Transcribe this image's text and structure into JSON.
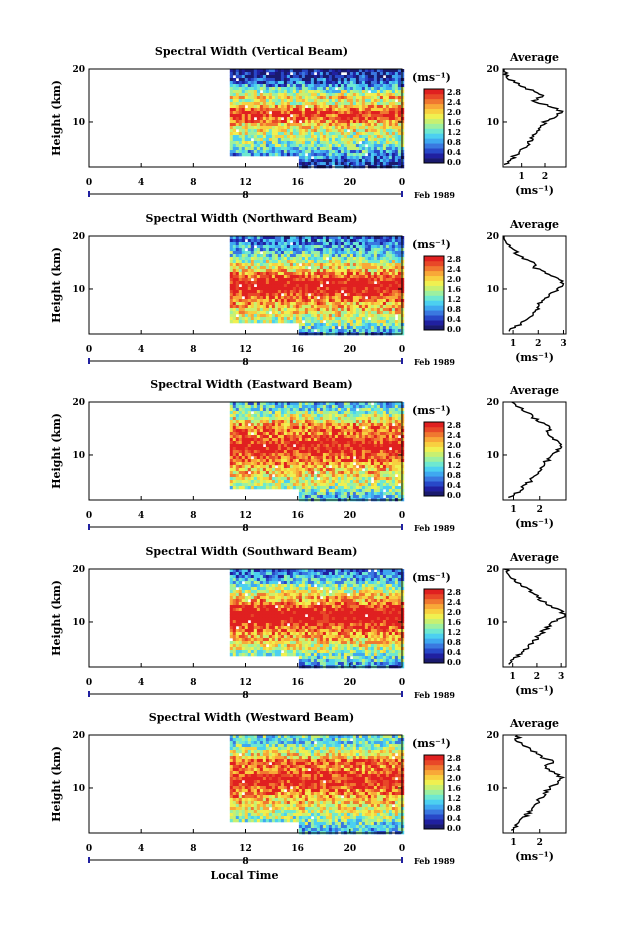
{
  "figure": {
    "xlabel": "Local Time",
    "date_label": "Feb 1989",
    "colorbar_unit": "(ms⁻¹)",
    "colorbar_ticks": [
      "2.8",
      "2.4",
      "2.0",
      "1.6",
      "1.2",
      "0.8",
      "0.4",
      "0.0"
    ],
    "colormap": [
      "#1a1a6e",
      "#2020a0",
      "#2848c8",
      "#3a78e0",
      "#3fa8f0",
      "#4cd0f0",
      "#6ee8d0",
      "#9cf0a0",
      "#c8f070",
      "#f0f050",
      "#f8d040",
      "#f8a838",
      "#f07830",
      "#e84828",
      "#e02020"
    ],
    "time_ticks": [
      "0",
      "4",
      "8",
      "12",
      "16",
      "20",
      "0"
    ],
    "day_label": "8",
    "height_ticks": [
      "20",
      "10"
    ],
    "height_axis_label": "Height (km)",
    "avg_title": "Average",
    "avg_unit": "(ms⁻¹)"
  },
  "chart_data": [
    {
      "type": "heatmap",
      "title": "Spectral Width (Vertical Beam)",
      "ylabel": "Height (km)",
      "xlabel": "",
      "x_range_hours": [
        0,
        24
      ],
      "y_range_km": [
        1.5,
        20
      ],
      "color_range": [
        0.0,
        2.8
      ],
      "data_start_hour": 10.8,
      "low_gap_until_hour": 16,
      "low_gap_top_km": 3.8,
      "profile_km": [
        2,
        4,
        6,
        8,
        10,
        11,
        12,
        13,
        14,
        15,
        16,
        17,
        18,
        19,
        20
      ],
      "profile_values": [
        0.3,
        0.8,
        1.3,
        1.6,
        2.0,
        2.5,
        2.7,
        2.2,
        1.5,
        2.0,
        1.4,
        0.9,
        0.5,
        0.3,
        0.2
      ],
      "avg_xlim": [
        0.2,
        2.9
      ],
      "avg_ticks": [
        "1",
        "2"
      ]
    },
    {
      "type": "heatmap",
      "title": "Spectral Width (Northward Beam)",
      "ylabel": "Height (km)",
      "xlabel": "",
      "x_range_hours": [
        0,
        24
      ],
      "y_range_km": [
        1.5,
        20
      ],
      "color_range": [
        0.0,
        2.8
      ],
      "data_start_hour": 10.8,
      "low_gap_until_hour": 16,
      "low_gap_top_km": 3.8,
      "profile_km": [
        2,
        4,
        6,
        8,
        10,
        11,
        12,
        13,
        14,
        15,
        16,
        17,
        18,
        19,
        20
      ],
      "profile_values": [
        0.8,
        1.5,
        1.9,
        2.2,
        2.8,
        3.0,
        2.8,
        2.3,
        1.9,
        1.8,
        1.3,
        1.1,
        0.9,
        0.7,
        0.6
      ],
      "avg_xlim": [
        0.6,
        3.1
      ],
      "avg_ticks": [
        "1",
        "2",
        "3"
      ]
    },
    {
      "type": "heatmap",
      "title": "Spectral Width (Eastward Beam)",
      "ylabel": "Height (km)",
      "xlabel": "",
      "x_range_hours": [
        0,
        24
      ],
      "y_range_km": [
        1.5,
        20
      ],
      "color_range": [
        0.0,
        2.8
      ],
      "data_start_hour": 10.8,
      "low_gap_until_hour": 16,
      "low_gap_top_km": 3.8,
      "profile_km": [
        2,
        4,
        6,
        8,
        10,
        11,
        12,
        13,
        14,
        15,
        16,
        17,
        18,
        19,
        20
      ],
      "profile_values": [
        0.9,
        1.4,
        1.8,
        2.1,
        2.5,
        2.7,
        2.9,
        2.6,
        2.3,
        2.4,
        2.1,
        1.8,
        1.5,
        1.2,
        1.0
      ],
      "avg_xlim": [
        0.6,
        3.0
      ],
      "avg_ticks": [
        "1",
        "2"
      ]
    },
    {
      "type": "heatmap",
      "title": "Spectral Width (Southward Beam)",
      "ylabel": "Height (km)",
      "xlabel": "",
      "x_range_hours": [
        0,
        24
      ],
      "y_range_km": [
        1.5,
        20
      ],
      "color_range": [
        0.0,
        2.8
      ],
      "data_start_hour": 10.8,
      "low_gap_until_hour": 16,
      "low_gap_top_km": 3.8,
      "profile_km": [
        2,
        4,
        6,
        8,
        10,
        11,
        12,
        13,
        14,
        15,
        16,
        17,
        18,
        19,
        20
      ],
      "profile_values": [
        0.8,
        1.3,
        1.8,
        2.2,
        2.7,
        3.1,
        3.0,
        2.6,
        2.2,
        2.0,
        1.7,
        1.4,
        1.0,
        0.8,
        0.7
      ],
      "avg_xlim": [
        0.6,
        3.2
      ],
      "avg_ticks": [
        "1",
        "2",
        "3"
      ]
    },
    {
      "type": "heatmap",
      "title": "Spectral Width (Westward Beam)",
      "ylabel": "Height (km)",
      "xlabel": "Local Time",
      "x_range_hours": [
        0,
        24
      ],
      "y_range_km": [
        1.5,
        20
      ],
      "color_range": [
        0.0,
        2.8
      ],
      "data_start_hour": 10.8,
      "low_gap_until_hour": 16,
      "low_gap_top_km": 3.8,
      "profile_km": [
        2,
        4,
        6,
        8,
        10,
        11,
        12,
        13,
        14,
        15,
        16,
        17,
        18,
        19,
        20
      ],
      "profile_values": [
        0.9,
        1.3,
        1.7,
        2.0,
        2.4,
        2.7,
        2.8,
        2.5,
        2.2,
        2.6,
        2.0,
        1.7,
        1.4,
        1.1,
        1.2
      ],
      "avg_xlim": [
        0.6,
        3.0
      ],
      "avg_ticks": [
        "1",
        "2"
      ]
    }
  ]
}
